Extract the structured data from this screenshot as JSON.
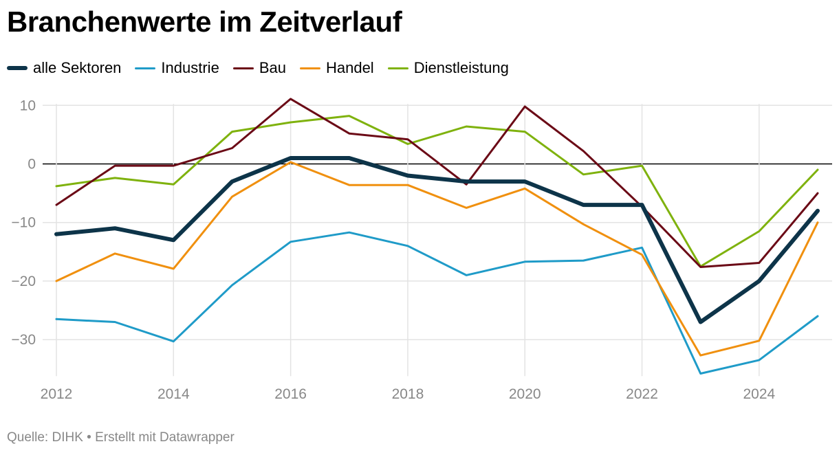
{
  "chart_data": {
    "type": "line",
    "title": "Branchenwerte im Zeitverlauf",
    "x": [
      2012,
      2013,
      2014,
      2015,
      2016,
      2017,
      2018,
      2019,
      2020,
      2021,
      2022,
      2023,
      2024,
      2025
    ],
    "x_ticks": [
      2012,
      2014,
      2016,
      2018,
      2020,
      2022,
      2024
    ],
    "y_ticks": [
      10,
      0,
      -10,
      -20,
      -30
    ],
    "y_tick_labels": [
      "10",
      "0",
      "−10",
      "−20",
      "−30"
    ],
    "ylim": [
      -36,
      10
    ],
    "grid": true,
    "legend_position": "top-left",
    "series": [
      {
        "name": "alle Sektoren",
        "color": "#0d3449",
        "width": 6,
        "values": [
          -12,
          -11,
          -13,
          -3,
          1,
          1,
          -2,
          -3,
          -3,
          -7,
          -7,
          -27,
          -20,
          -8
        ]
      },
      {
        "name": "Industrie",
        "color": "#1f9bc8",
        "width": 3,
        "values": [
          -26.5,
          -27,
          -30.3,
          -20.7,
          -13.3,
          -11.7,
          -14,
          -19,
          -16.7,
          -16.5,
          -14.3,
          -35.8,
          -33.5,
          -26
        ]
      },
      {
        "name": "Bau",
        "color": "#6b0a16",
        "width": 3,
        "values": [
          -7,
          -0.3,
          -0.3,
          2.7,
          11.1,
          5.2,
          4.2,
          -3.5,
          9.8,
          2.2,
          -7.3,
          -17.6,
          -16.9,
          -5
        ]
      },
      {
        "name": "Handel",
        "color": "#f0900f",
        "width": 3,
        "values": [
          -20,
          -15.3,
          -17.9,
          -5.6,
          0.3,
          -3.6,
          -3.6,
          -7.5,
          -4.2,
          -10.3,
          -15.5,
          -32.7,
          -30.2,
          -10
        ]
      },
      {
        "name": "Dienstleistung",
        "color": "#7fb20e",
        "width": 3,
        "values": [
          -3.8,
          -2.4,
          -3.5,
          5.5,
          7.1,
          8.2,
          3.4,
          6.4,
          5.5,
          -1.8,
          -0.3,
          -17.5,
          -11.5,
          -1
        ]
      }
    ],
    "draw_order": [
      1,
      3,
      4,
      2,
      0
    ]
  },
  "footer": {
    "text": "Quelle: DIHK • Erstellt mit Datawrapper"
  }
}
